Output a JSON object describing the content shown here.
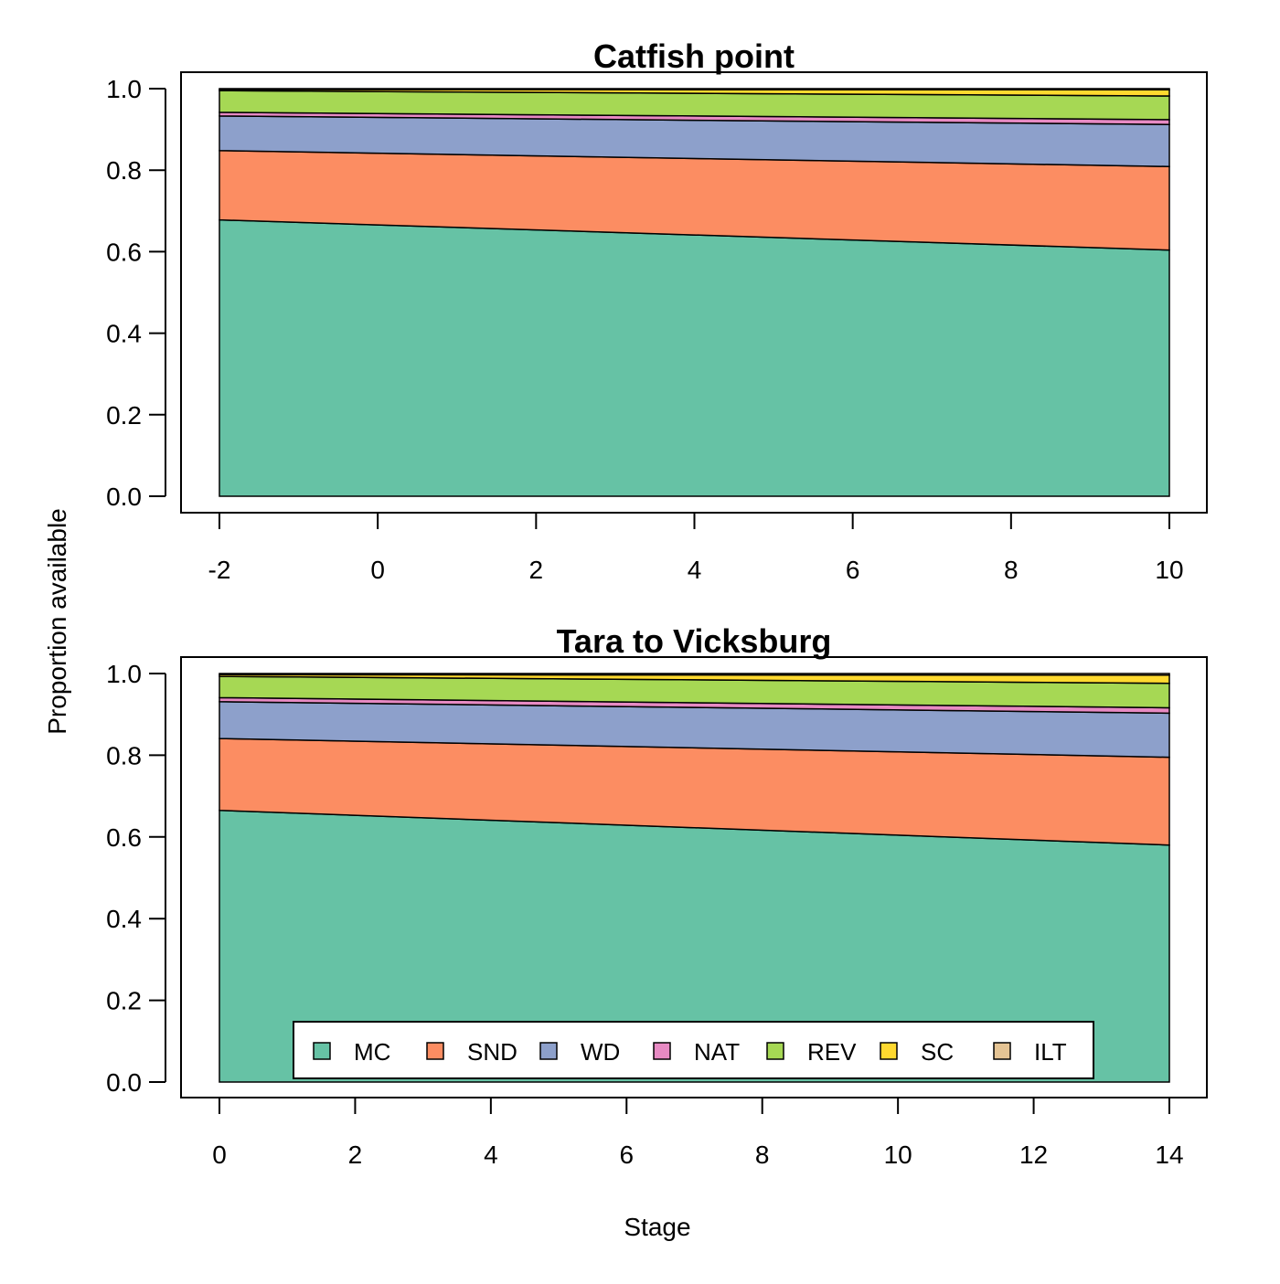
{
  "ylabel": "Proportion available",
  "xlabel": "Stage",
  "legend": {
    "placement": "bottom-center of lower panel",
    "items": [
      {
        "key": "MC",
        "color": "#66C2A5"
      },
      {
        "key": "SND",
        "color": "#FC8D62"
      },
      {
        "key": "WD",
        "color": "#8DA0CB"
      },
      {
        "key": "NAT",
        "color": "#E78AC3"
      },
      {
        "key": "REV",
        "color": "#A6D854"
      },
      {
        "key": "SC",
        "color": "#FFD92F"
      },
      {
        "key": "ILT",
        "color": "#E5C494"
      }
    ]
  },
  "chart_data": [
    {
      "type": "area",
      "stacked": true,
      "title": "Catfish point",
      "xlabel": "",
      "ylabel": "Proportion available",
      "x": [
        -2,
        10
      ],
      "xlim": [
        -2,
        10
      ],
      "ylim": [
        0,
        1
      ],
      "xticks": [
        "-2",
        "0",
        "2",
        "4",
        "6",
        "8",
        "10"
      ],
      "yticks": [
        "0.0",
        "0.2",
        "0.4",
        "0.6",
        "0.8",
        "1.0"
      ],
      "series": [
        {
          "name": "MC",
          "values": [
            0.678,
            0.604
          ]
        },
        {
          "name": "SND",
          "values": [
            0.17,
            0.205
          ]
        },
        {
          "name": "WD",
          "values": [
            0.085,
            0.103
          ]
        },
        {
          "name": "NAT",
          "values": [
            0.009,
            0.012
          ]
        },
        {
          "name": "REV",
          "values": [
            0.053,
            0.058
          ]
        },
        {
          "name": "SC",
          "values": [
            0.003,
            0.015
          ]
        },
        {
          "name": "ILT",
          "values": [
            0.002,
            0.003
          ]
        }
      ]
    },
    {
      "type": "area",
      "stacked": true,
      "title": "Tara to Vicksburg",
      "xlabel": "Stage",
      "ylabel": "Proportion available",
      "x": [
        0,
        14
      ],
      "xlim": [
        0,
        14
      ],
      "ylim": [
        0,
        1
      ],
      "xticks": [
        "0",
        "2",
        "4",
        "6",
        "8",
        "10",
        "12",
        "14"
      ],
      "yticks": [
        "0.0",
        "0.2",
        "0.4",
        "0.6",
        "0.8",
        "1.0"
      ],
      "series": [
        {
          "name": "MC",
          "values": [
            0.665,
            0.58
          ]
        },
        {
          "name": "SND",
          "values": [
            0.176,
            0.215
          ]
        },
        {
          "name": "WD",
          "values": [
            0.09,
            0.108
          ]
        },
        {
          "name": "NAT",
          "values": [
            0.01,
            0.013
          ]
        },
        {
          "name": "REV",
          "values": [
            0.052,
            0.06
          ]
        },
        {
          "name": "SC",
          "values": [
            0.004,
            0.02
          ]
        },
        {
          "name": "ILT",
          "values": [
            0.003,
            0.004
          ]
        }
      ]
    }
  ]
}
